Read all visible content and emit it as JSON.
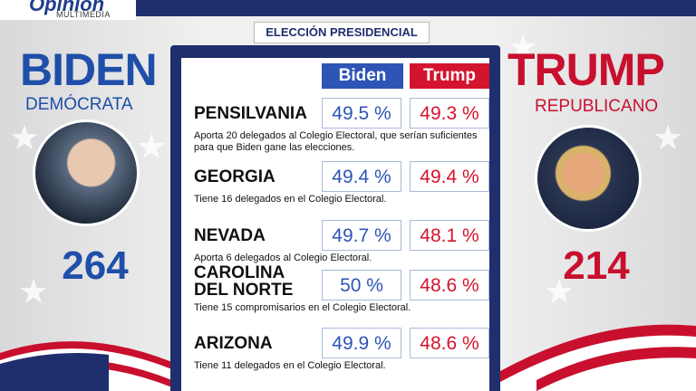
{
  "header": {
    "logo": "Opinión",
    "logo_sub": "MULTIMEDIA"
  },
  "subtitle": "ELECCIÓN PRESIDENCIAL",
  "candidates": [
    {
      "name": "BIDEN",
      "party": "DEMÓCRATA",
      "electoral_votes": 264
    },
    {
      "name": "TRUMP",
      "party": "REPUBLICANO",
      "electoral_votes": 214
    }
  ],
  "table": {
    "columns": [
      "Biden",
      "Trump"
    ],
    "rows": [
      {
        "state": "PENSILVANIA",
        "biden": "49.5 %",
        "trump": "49.3 %",
        "note": "Aporta 20 delegados al Colegio Electoral, que serían suficientes para que Biden gane las elecciones."
      },
      {
        "state": "GEORGIA",
        "biden": "49.4 %",
        "trump": "49.4 %",
        "note": "Tiene 16 delegados en el Colegio Electoral."
      },
      {
        "state": "NEVADA",
        "biden": "49.7 %",
        "trump": "48.1 %",
        "note": "Aporta 6 delegados al Colegio Electoral."
      },
      {
        "state": "CAROLINA DEL NORTE",
        "biden": "50 %",
        "trump": "48.6 %",
        "note": "Tiene 15 compromisarios en el Colegio Electoral."
      },
      {
        "state": "ARIZONA",
        "biden": "49.9 %",
        "trump": "48.6 %",
        "note": "Tiene 11 delegados en el Colegio Electoral."
      }
    ]
  }
}
